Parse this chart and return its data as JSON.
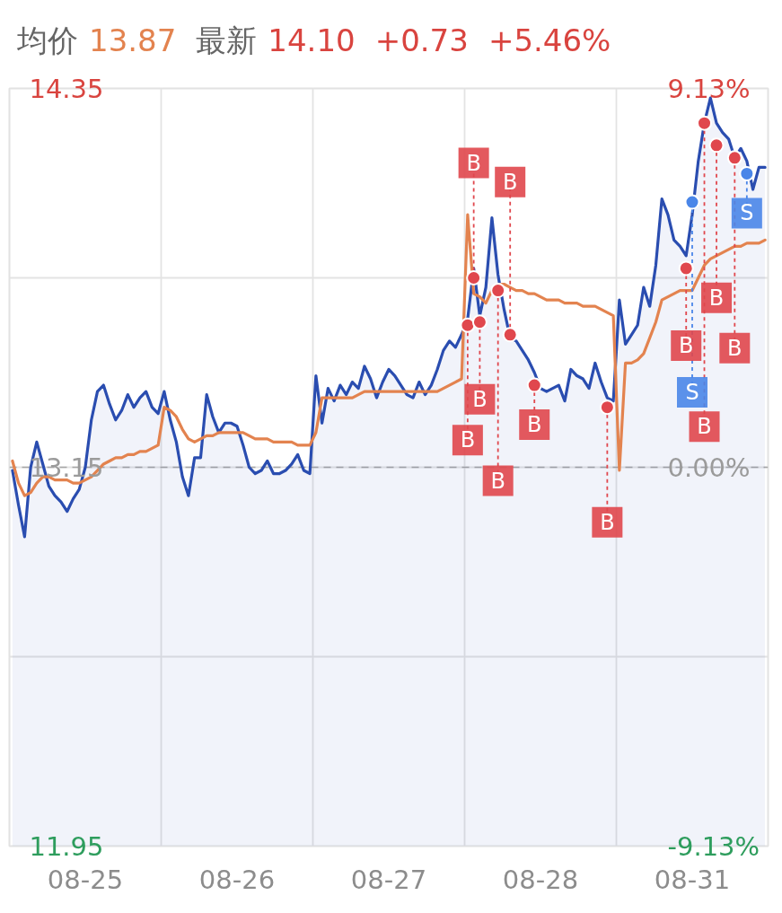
{
  "chart_data": {
    "type": "line",
    "categories": [
      null,
      null,
      null,
      null,
      null,
      null,
      null,
      null,
      null,
      null,
      null,
      null,
      "08-25",
      null,
      null,
      null,
      null,
      null,
      null,
      null,
      null,
      null,
      null,
      null,
      null,
      null,
      null,
      null,
      null,
      null,
      null,
      null,
      null,
      null,
      null,
      null,
      null,
      "08-26",
      null,
      null,
      null,
      null,
      null,
      null,
      null,
      null,
      null,
      null,
      null,
      null,
      null,
      null,
      null,
      null,
      null,
      null,
      null,
      null,
      null,
      null,
      null,
      null,
      "08-27",
      null,
      null,
      null,
      null,
      null,
      null,
      null,
      null,
      null,
      null,
      null,
      null,
      null,
      null,
      null,
      null,
      null,
      null,
      null,
      null,
      null,
      null,
      null,
      null,
      "08-28",
      null,
      null,
      null,
      null,
      null,
      null,
      null,
      null,
      null,
      null,
      null,
      null,
      null,
      null,
      null,
      null,
      null,
      null,
      null,
      null,
      null,
      null,
      null,
      null,
      "08-31",
      null,
      null,
      null,
      null,
      null,
      null,
      null,
      null,
      null,
      null,
      null,
      null
    ],
    "annotations": [
      "均价",
      "13.87",
      "最新",
      "14.10",
      "+0.73",
      "+5.46%",
      {
        "text": "B",
        "y": 13.6
      },
      {
        "text": "B",
        "y": 13.75
      },
      {
        "text": "B",
        "y": 13.61
      },
      {
        "text": "B",
        "y": 13.71
      },
      {
        "text": "B",
        "y": 13.57
      },
      {
        "text": "B",
        "y": 13.41
      },
      {
        "text": "B",
        "y": 13.34
      },
      {
        "text": "B",
        "y": 13.78
      },
      {
        "text": "S",
        "y": 13.99
      },
      {
        "text": "B",
        "y": 14.24
      },
      {
        "text": "B",
        "y": 14.17
      },
      {
        "text": "B",
        "y": 14.13
      },
      {
        "text": "S",
        "y": 14.08
      }
    ],
    "ylim": [
      11.95,
      14.35
    ],
    "yticks": [
      14.35,
      {
        "value": 13.75,
        "label": null
      },
      13.15,
      {
        "value": 12.55,
        "label": null
      },
      11.95
    ],
    "y2lim": [
      -9.13,
      9.13
    ],
    "y2ticks": [
      {
        "value": 9.13,
        "label": "9.13%"
      },
      {
        "value": 0,
        "label": "0.00%"
      },
      {
        "value": -9.13,
        "label": "-9.13%"
      }
    ],
    "grid": true,
    "ref_lines": [
      {
        "axis": "y",
        "value": 13.15,
        "color": "#a6a6a6",
        "line_style": "dashed"
      }
    ],
    "series": [
      {
        "type": "area",
        "color": "#2a4db0",
        "values": [
          13.14,
          13.03,
          12.93,
          13.15,
          13.23,
          13.16,
          13.09,
          13.06,
          13.04,
          13.01,
          13.05,
          13.08,
          13.15,
          13.3,
          13.39,
          13.41,
          13.35,
          13.3,
          13.33,
          13.38,
          13.34,
          13.37,
          13.39,
          13.34,
          13.32,
          13.39,
          13.3,
          13.23,
          13.12,
          13.06,
          13.18,
          13.18,
          13.38,
          13.31,
          13.26,
          13.29,
          13.29,
          13.28,
          13.22,
          13.15,
          13.13,
          13.14,
          13.17,
          13.13,
          13.13,
          13.14,
          13.16,
          13.19,
          13.14,
          13.13,
          13.44,
          13.29,
          13.4,
          13.36,
          13.41,
          13.38,
          13.42,
          13.4,
          13.47,
          13.43,
          13.37,
          13.42,
          13.46,
          13.44,
          13.41,
          13.38,
          13.37,
          13.42,
          13.38,
          13.41,
          13.46,
          13.52,
          13.55,
          13.53,
          13.57,
          13.62,
          13.78,
          13.63,
          13.72,
          13.94,
          13.76,
          13.65,
          13.56,
          13.55,
          13.52,
          13.49,
          13.45,
          13.4,
          13.39,
          13.4,
          13.41,
          13.36,
          13.46,
          13.44,
          13.43,
          13.4,
          13.48,
          13.42,
          13.37,
          13.36,
          13.68,
          13.54,
          13.57,
          13.6,
          13.72,
          13.66,
          13.79,
          14.0,
          13.95,
          13.87,
          13.85,
          13.82,
          13.95,
          14.12,
          14.24,
          14.32,
          14.24,
          14.21,
          14.19,
          14.13,
          14.16,
          14.12,
          14.03,
          14.1,
          14.1
        ]
      },
      {
        "color": "#e3834f",
        "values": [
          13.17,
          13.1,
          13.06,
          13.07,
          13.1,
          13.12,
          13.12,
          13.11,
          13.11,
          13.11,
          13.1,
          13.1,
          13.11,
          13.12,
          13.14,
          13.16,
          13.17,
          13.18,
          13.18,
          13.19,
          13.19,
          13.2,
          13.2,
          13.21,
          13.22,
          13.34,
          13.33,
          13.31,
          13.27,
          13.24,
          13.23,
          13.24,
          13.25,
          13.25,
          13.26,
          13.26,
          13.26,
          13.26,
          13.26,
          13.25,
          13.24,
          13.24,
          13.24,
          13.23,
          13.23,
          13.23,
          13.23,
          13.22,
          13.22,
          13.22,
          13.26,
          13.37,
          13.37,
          13.37,
          13.37,
          13.37,
          13.37,
          13.38,
          13.39,
          13.39,
          13.39,
          13.39,
          13.39,
          13.39,
          13.39,
          13.39,
          13.39,
          13.39,
          13.39,
          13.39,
          13.39,
          13.4,
          13.41,
          13.42,
          13.43,
          13.95,
          13.7,
          13.69,
          13.67,
          13.71,
          13.73,
          13.73,
          13.72,
          13.71,
          13.71,
          13.7,
          13.7,
          13.69,
          13.68,
          13.68,
          13.68,
          13.67,
          13.67,
          13.67,
          13.66,
          13.66,
          13.66,
          13.65,
          13.64,
          13.63,
          13.14,
          13.48,
          13.48,
          13.49,
          13.51,
          13.56,
          13.61,
          13.68,
          13.69,
          13.7,
          13.71,
          13.71,
          13.71,
          13.75,
          13.79,
          13.81,
          13.82,
          13.83,
          13.84,
          13.85,
          13.85,
          13.86,
          13.86,
          13.86,
          13.87
        ]
      },
      {
        "type": "scatter",
        "color": "#e0474d",
        "marker": "circle",
        "values": [
          null,
          null,
          null,
          null,
          null,
          null,
          null,
          null,
          null,
          null,
          null,
          null,
          null,
          null,
          null,
          null,
          null,
          null,
          null,
          null,
          null,
          null,
          null,
          null,
          null,
          null,
          null,
          null,
          null,
          null,
          null,
          null,
          null,
          null,
          null,
          null,
          null,
          null,
          null,
          null,
          null,
          null,
          null,
          null,
          null,
          null,
          null,
          null,
          null,
          null,
          null,
          null,
          null,
          null,
          null,
          null,
          null,
          null,
          null,
          null,
          null,
          null,
          null,
          null,
          null,
          null,
          null,
          null,
          null,
          null,
          null,
          null,
          null,
          null,
          null,
          13.6,
          13.75,
          13.61,
          null,
          null,
          13.71,
          null,
          13.57,
          null,
          null,
          null,
          13.41,
          null,
          null,
          null,
          null,
          null,
          null,
          null,
          null,
          null,
          null,
          null,
          13.34,
          null,
          null,
          null,
          null,
          null,
          null,
          null,
          null,
          null,
          null,
          null,
          null,
          13.78,
          null,
          null,
          14.24,
          null,
          14.17,
          null,
          null,
          14.13,
          null,
          null,
          null,
          null,
          null
        ]
      },
      {
        "type": "scatter",
        "color": "#4a86e8",
        "marker": "circle",
        "values": [
          null,
          null,
          null,
          null,
          null,
          null,
          null,
          null,
          null,
          null,
          null,
          null,
          null,
          null,
          null,
          null,
          null,
          null,
          null,
          null,
          null,
          null,
          null,
          null,
          null,
          null,
          null,
          null,
          null,
          null,
          null,
          null,
          null,
          null,
          null,
          null,
          null,
          null,
          null,
          null,
          null,
          null,
          null,
          null,
          null,
          null,
          null,
          null,
          null,
          null,
          null,
          null,
          null,
          null,
          null,
          null,
          null,
          null,
          null,
          null,
          null,
          null,
          null,
          null,
          null,
          null,
          null,
          null,
          null,
          null,
          null,
          null,
          null,
          null,
          null,
          null,
          null,
          null,
          null,
          null,
          null,
          null,
          null,
          null,
          null,
          null,
          null,
          null,
          null,
          null,
          null,
          null,
          null,
          null,
          null,
          null,
          null,
          null,
          null,
          null,
          null,
          null,
          null,
          null,
          null,
          null,
          null,
          null,
          null,
          null,
          null,
          null,
          13.99,
          null,
          null,
          null,
          null,
          null,
          null,
          null,
          null,
          14.08,
          null,
          null,
          null
        ]
      }
    ]
  }
}
